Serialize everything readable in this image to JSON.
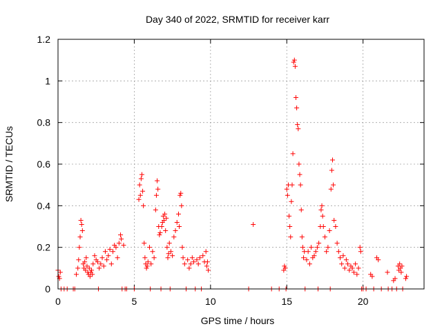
{
  "chart_data": {
    "type": "scatter",
    "title": "Day 340 of 2022, SRMTID for receiver karr",
    "xlabel": "GPS time / hours",
    "ylabel": "SRMTID / TECUs",
    "xlim": [
      0,
      24
    ],
    "ylim": [
      0,
      1.2
    ],
    "xticks": [
      0,
      5,
      10,
      15,
      20
    ],
    "xtick_labels": [
      "0",
      "5",
      "10",
      "15",
      "20"
    ],
    "yticks": [
      0,
      0.2,
      0.4,
      0.6,
      0.8,
      1.0,
      1.2
    ],
    "ytick_labels": [
      "0",
      "0.2",
      "0.4",
      "0.6",
      "0.8",
      "1",
      "1.2"
    ],
    "grid": true,
    "marker": "+",
    "color": "#ff0000",
    "series": [
      {
        "name": "SRMTID",
        "points": [
          [
            0.0,
            0.09
          ],
          [
            0.05,
            0.06
          ],
          [
            0.1,
            0.05
          ],
          [
            0.15,
            0.08
          ],
          [
            0.2,
            0.0
          ],
          [
            0.4,
            0.0
          ],
          [
            0.6,
            0.0
          ],
          [
            1.0,
            0.0
          ],
          [
            1.1,
            0.0
          ],
          [
            1.2,
            0.07
          ],
          [
            1.3,
            0.1
          ],
          [
            1.35,
            0.14
          ],
          [
            1.4,
            0.2
          ],
          [
            1.45,
            0.25
          ],
          [
            1.5,
            0.33
          ],
          [
            1.55,
            0.31
          ],
          [
            1.6,
            0.28
          ],
          [
            1.65,
            0.12
          ],
          [
            1.7,
            0.1
          ],
          [
            1.75,
            0.13
          ],
          [
            1.8,
            0.09
          ],
          [
            1.85,
            0.15
          ],
          [
            1.9,
            0.11
          ],
          [
            1.95,
            0.08
          ],
          [
            2.0,
            0.07
          ],
          [
            2.05,
            0.1
          ],
          [
            2.1,
            0.06
          ],
          [
            2.15,
            0.08
          ],
          [
            2.2,
            0.09
          ],
          [
            2.25,
            0.07
          ],
          [
            2.3,
            0.12
          ],
          [
            2.4,
            0.16
          ],
          [
            2.5,
            0.14
          ],
          [
            2.6,
            0.13
          ],
          [
            2.65,
            0.0
          ],
          [
            2.7,
            0.1
          ],
          [
            2.8,
            0.12
          ],
          [
            2.9,
            0.15
          ],
          [
            3.0,
            0.11
          ],
          [
            3.1,
            0.18
          ],
          [
            3.2,
            0.14
          ],
          [
            3.3,
            0.16
          ],
          [
            3.4,
            0.19
          ],
          [
            3.5,
            0.12
          ],
          [
            3.6,
            0.18
          ],
          [
            3.7,
            0.21
          ],
          [
            3.8,
            0.2
          ],
          [
            3.9,
            0.15
          ],
          [
            4.0,
            0.22
          ],
          [
            4.1,
            0.26
          ],
          [
            4.15,
            0.24
          ],
          [
            4.2,
            0.0
          ],
          [
            4.3,
            0.21
          ],
          [
            4.4,
            0.0
          ],
          [
            4.5,
            0.0
          ],
          [
            5.0,
            0.0
          ],
          [
            5.3,
            0.43
          ],
          [
            5.35,
            0.5
          ],
          [
            5.4,
            0.45
          ],
          [
            5.45,
            0.53
          ],
          [
            5.5,
            0.55
          ],
          [
            5.55,
            0.47
          ],
          [
            5.6,
            0.4
          ],
          [
            5.65,
            0.22
          ],
          [
            5.7,
            0.15
          ],
          [
            5.75,
            0.12
          ],
          [
            5.8,
            0.1
          ],
          [
            5.85,
            0.11
          ],
          [
            5.9,
            0.13
          ],
          [
            6.0,
            0.2
          ],
          [
            6.05,
            0.0
          ],
          [
            6.1,
            0.12
          ],
          [
            6.2,
            0.18
          ],
          [
            6.3,
            0.15
          ],
          [
            6.4,
            0.38
          ],
          [
            6.45,
            0.45
          ],
          [
            6.5,
            0.52
          ],
          [
            6.55,
            0.48
          ],
          [
            6.6,
            0.3
          ],
          [
            6.65,
            0.26
          ],
          [
            6.7,
            0.27
          ],
          [
            6.75,
            0.0
          ],
          [
            6.8,
            0.3
          ],
          [
            6.85,
            0.32
          ],
          [
            6.9,
            0.35
          ],
          [
            6.95,
            0.33
          ],
          [
            7.0,
            0.36
          ],
          [
            7.05,
            0.28
          ],
          [
            7.1,
            0.34
          ],
          [
            7.15,
            0.2
          ],
          [
            7.2,
            0.15
          ],
          [
            7.25,
            0.17
          ],
          [
            7.3,
            0.22
          ],
          [
            7.35,
            0.0
          ],
          [
            7.4,
            0.18
          ],
          [
            7.5,
            0.16
          ],
          [
            7.6,
            0.25
          ],
          [
            7.7,
            0.28
          ],
          [
            7.8,
            0.32
          ],
          [
            7.9,
            0.36
          ],
          [
            7.95,
            0.3
          ],
          [
            8.0,
            0.45
          ],
          [
            8.05,
            0.46
          ],
          [
            8.1,
            0.4
          ],
          [
            8.15,
            0.2
          ],
          [
            8.2,
            0.15
          ],
          [
            8.3,
            0.12
          ],
          [
            8.4,
            0.0
          ],
          [
            8.5,
            0.14
          ],
          [
            8.6,
            0.1
          ],
          [
            8.7,
            0.12
          ],
          [
            8.8,
            0.15
          ],
          [
            8.9,
            0.13
          ],
          [
            9.0,
            0.0
          ],
          [
            9.1,
            0.14
          ],
          [
            9.2,
            0.12
          ],
          [
            9.3,
            0.15
          ],
          [
            9.4,
            0.0
          ],
          [
            9.5,
            0.16
          ],
          [
            9.6,
            0.13
          ],
          [
            9.7,
            0.18
          ],
          [
            9.75,
            0.11
          ],
          [
            9.8,
            0.13
          ],
          [
            9.85,
            0.09
          ],
          [
            12.5,
            0.0
          ],
          [
            12.8,
            0.31
          ],
          [
            14.0,
            0.0
          ],
          [
            14.5,
            0.0
          ],
          [
            14.8,
            0.09
          ],
          [
            14.85,
            0.11
          ],
          [
            14.9,
            0.1
          ],
          [
            14.95,
            0.0
          ],
          [
            15.0,
            0.48
          ],
          [
            15.05,
            0.45
          ],
          [
            15.1,
            0.5
          ],
          [
            15.15,
            0.35
          ],
          [
            15.2,
            0.3
          ],
          [
            15.25,
            0.25
          ],
          [
            15.3,
            0.42
          ],
          [
            15.35,
            0.5
          ],
          [
            15.4,
            0.65
          ],
          [
            15.45,
            1.09
          ],
          [
            15.5,
            1.1
          ],
          [
            15.55,
            1.07
          ],
          [
            15.6,
            0.92
          ],
          [
            15.65,
            0.87
          ],
          [
            15.7,
            0.79
          ],
          [
            15.75,
            0.77
          ],
          [
            15.8,
            0.6
          ],
          [
            15.85,
            0.55
          ],
          [
            15.9,
            0.5
          ],
          [
            15.95,
            0.38
          ],
          [
            16.0,
            0.25
          ],
          [
            16.05,
            0.2
          ],
          [
            16.1,
            0.15
          ],
          [
            16.15,
            0.18
          ],
          [
            16.2,
            0.0
          ],
          [
            16.3,
            0.14
          ],
          [
            16.4,
            0.18
          ],
          [
            16.5,
            0.12
          ],
          [
            16.6,
            0.2
          ],
          [
            16.7,
            0.15
          ],
          [
            16.8,
            0.16
          ],
          [
            16.9,
            0.18
          ],
          [
            17.0,
            0.2
          ],
          [
            17.05,
            0.0
          ],
          [
            17.1,
            0.22
          ],
          [
            17.2,
            0.3
          ],
          [
            17.25,
            0.38
          ],
          [
            17.3,
            0.4
          ],
          [
            17.35,
            0.35
          ],
          [
            17.4,
            0.3
          ],
          [
            17.5,
            0.25
          ],
          [
            17.6,
            0.18
          ],
          [
            17.7,
            0.2
          ],
          [
            17.8,
            0.28
          ],
          [
            17.85,
            0.0
          ],
          [
            17.9,
            0.48
          ],
          [
            17.95,
            0.57
          ],
          [
            18.0,
            0.62
          ],
          [
            18.05,
            0.5
          ],
          [
            18.1,
            0.33
          ],
          [
            18.2,
            0.3
          ],
          [
            18.3,
            0.22
          ],
          [
            18.4,
            0.18
          ],
          [
            18.5,
            0.15
          ],
          [
            18.6,
            0.12
          ],
          [
            18.7,
            0.16
          ],
          [
            18.8,
            0.1
          ],
          [
            18.9,
            0.14
          ],
          [
            19.0,
            0.12
          ],
          [
            19.1,
            0.09
          ],
          [
            19.2,
            0.11
          ],
          [
            19.3,
            0.1
          ],
          [
            19.4,
            0.08
          ],
          [
            19.5,
            0.12
          ],
          [
            19.6,
            0.07
          ],
          [
            19.7,
            0.1
          ],
          [
            19.8,
            0.2
          ],
          [
            19.85,
            0.18
          ],
          [
            19.9,
            0.0
          ],
          [
            20.0,
            0.0
          ],
          [
            20.2,
            0.0
          ],
          [
            20.5,
            0.07
          ],
          [
            20.6,
            0.06
          ],
          [
            20.7,
            0.0
          ],
          [
            20.9,
            0.15
          ],
          [
            21.0,
            0.14
          ],
          [
            21.2,
            0.0
          ],
          [
            21.6,
            0.08
          ],
          [
            21.65,
            0.0
          ],
          [
            21.9,
            0.0
          ],
          [
            22.0,
            0.04
          ],
          [
            22.1,
            0.05
          ],
          [
            22.2,
            0.0
          ],
          [
            22.3,
            0.11
          ],
          [
            22.35,
            0.09
          ],
          [
            22.4,
            0.12
          ],
          [
            22.45,
            0.1
          ],
          [
            22.5,
            0.08
          ],
          [
            22.55,
            0.11
          ],
          [
            22.6,
            0.0
          ],
          [
            22.8,
            0.05
          ],
          [
            22.85,
            0.06
          ]
        ]
      }
    ]
  }
}
